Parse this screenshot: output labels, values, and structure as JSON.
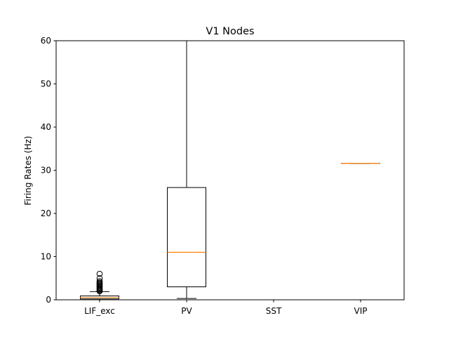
{
  "chart_data": {
    "type": "box",
    "title": "V1 Nodes",
    "xlabel": "",
    "ylabel": "Firing Rates (Hz)",
    "ylim": [
      0,
      60
    ],
    "yticks": [
      0,
      10,
      20,
      30,
      40,
      50,
      60
    ],
    "categories": [
      "LIF_exc",
      "PV",
      "SST",
      "VIP"
    ],
    "boxes": [
      {
        "category": "LIF_exc",
        "whisker_low": 0.0,
        "q1": 0.2,
        "median": 0.5,
        "q3": 0.9,
        "whisker_high": 1.9,
        "outliers": [
          2.0,
          2.2,
          2.4,
          2.6,
          2.8,
          3.0,
          3.2,
          3.4,
          3.6,
          3.8,
          4.0,
          4.3,
          5.0,
          6.0
        ]
      },
      {
        "category": "PV",
        "whisker_low": 0.3,
        "q1": 3.0,
        "median": 11.0,
        "q3": 26.0,
        "whisker_high": 60.0,
        "outliers": []
      },
      {
        "category": "SST",
        "whisker_low": null,
        "q1": null,
        "median": null,
        "q3": null,
        "whisker_high": null,
        "outliers": []
      },
      {
        "category": "VIP",
        "whisker_low": 31.6,
        "q1": 31.6,
        "median": 31.6,
        "q3": 31.6,
        "whisker_high": 31.6,
        "outliers": []
      }
    ],
    "grid": false,
    "colors": {
      "box": "#000000",
      "median": "#ff7f0e",
      "background": "#ffffff"
    }
  }
}
